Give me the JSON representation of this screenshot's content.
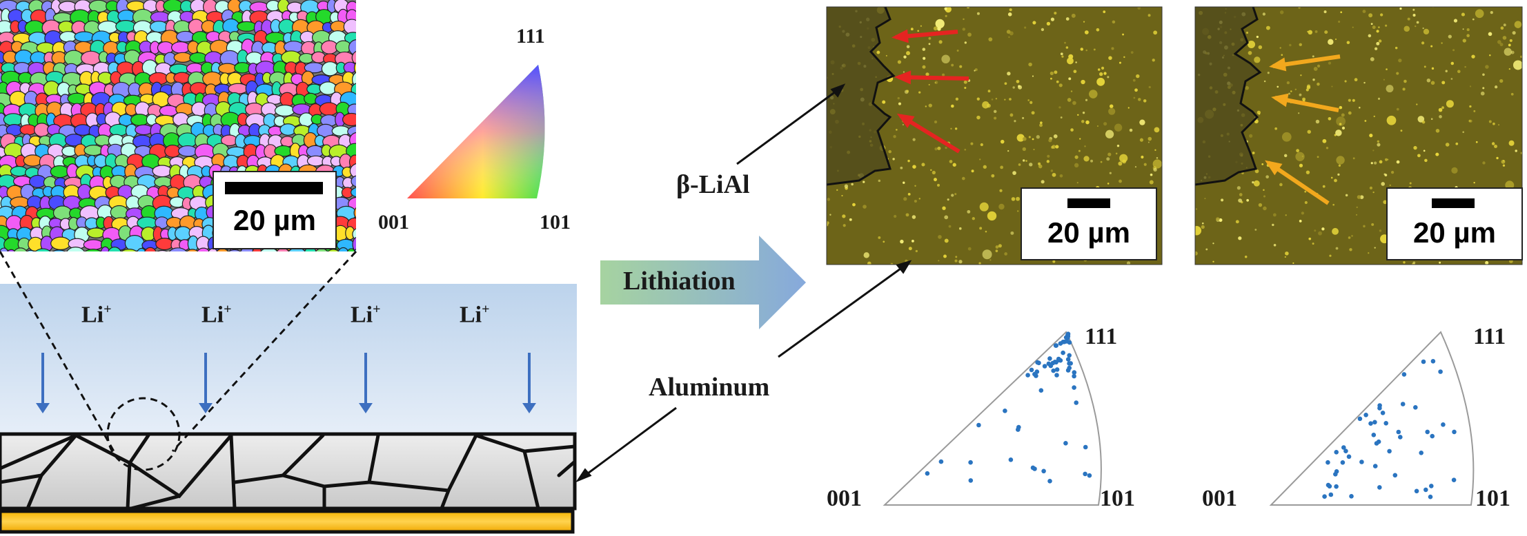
{
  "ebsd": {
    "scale_label": "20 µm",
    "ipf_key": {
      "c111": "111",
      "c001": "001",
      "c101": "101"
    }
  },
  "schematic": {
    "li_labels": [
      "Li",
      "Li",
      "Li",
      "Li"
    ],
    "li_charge": "+"
  },
  "arrow": {
    "label": "Lithiation"
  },
  "callouts": {
    "beta": "β-LiAl",
    "aluminum": "Aluminum"
  },
  "micrographs": [
    {
      "scale_label": "20 µm",
      "marker_color": "#e52421"
    },
    {
      "scale_label": "20 µm",
      "marker_color": "#f2a81d"
    }
  ],
  "pole_figures": [
    {
      "c111": "111",
      "c001": "001",
      "c101": "101",
      "point_color": "#2a74c0"
    },
    {
      "c111": "111",
      "c001": "001",
      "c101": "101",
      "point_color": "#2a74c0"
    }
  ]
}
